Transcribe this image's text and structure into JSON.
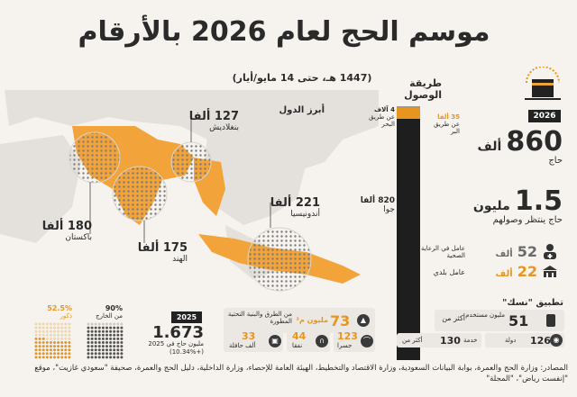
{
  "header": {
    "title": "موسم الحج لعام 2026 بالأرقام",
    "subtitle": "(1447 هـ، حتى 14 مايو/أيار)"
  },
  "countries": {
    "heading": "أبرز الدول",
    "items": [
      {
        "value": "127 ألفا",
        "name": "بنغلاديش"
      },
      {
        "value": "180 ألفا",
        "name": "باكستان"
      },
      {
        "value": "175 ألفا",
        "name": "الهند"
      },
      {
        "value": "221 ألفا",
        "name": "أندونيسيا"
      }
    ]
  },
  "arrival": {
    "heading": "طريقة الوصول",
    "sea_value": "4 آلاف",
    "sea_label": "عن طريق البحر",
    "land_value": "35 ألفا",
    "land_label": "عن طريق البر",
    "air_value": "820 ألفا",
    "air_label": "جوا",
    "colors": {
      "sea": "#9a9a9a",
      "land": "#e8951f",
      "air": "#1e1e1e"
    }
  },
  "pilgrims": {
    "year_badge": "2026",
    "value": "860",
    "unit": "ألف",
    "label": "حاج"
  },
  "staff": {
    "value": "1.5",
    "unit": "مليون",
    "label": "حاج ينتظر وصولهم",
    "health_value": "52",
    "health_unit": "ألف",
    "health_label": "عامل في الرعاية الصحية",
    "municipal_value": "22",
    "municipal_unit": "ألف",
    "municipal_label": "عامل بلدي"
  },
  "app": {
    "heading": "تطبيق \"نسك\"",
    "users_prefix": "أكثر من",
    "users_value": "51",
    "users_label": "مليون مستخدم",
    "services_prefix": "أكثر من",
    "services_value": "130",
    "services_label": "خدمة",
    "countries_value": "126",
    "countries_label": "دولة"
  },
  "roads": {
    "value": "73",
    "unit": "مليون م²",
    "label": "من الطرق والبنية التحتية المطورة",
    "bridges_value": "123",
    "bridges_label": "جسرا",
    "tunnels_value": "44",
    "tunnels_label": "نفقا",
    "buses_value": "33",
    "buses_label": "ألف حافلة"
  },
  "year2025": {
    "badge": "2025",
    "value": "1.673",
    "label": "مليون حاج في 2025",
    "change": "(+10.34%)"
  },
  "ratios": {
    "abroad_pct": "90%",
    "abroad_label": "من الخارج",
    "male_pct": "52.5%",
    "male_label": "ذكور",
    "abroad_fraction": 0.9,
    "male_fraction": 0.525
  },
  "sources": "المصادر: وزارة الحج والعمرة، بوابة البيانات السعودية، وزارة الاقتصاد والتخطيط، الهيئة العامة للإحصاء، وزارة الداخلية، دليل الحج والعمرة، صحيفة \"سعودي غازيت\"، موقع \"إنفست رياض\"، \"المجلة\""
}
